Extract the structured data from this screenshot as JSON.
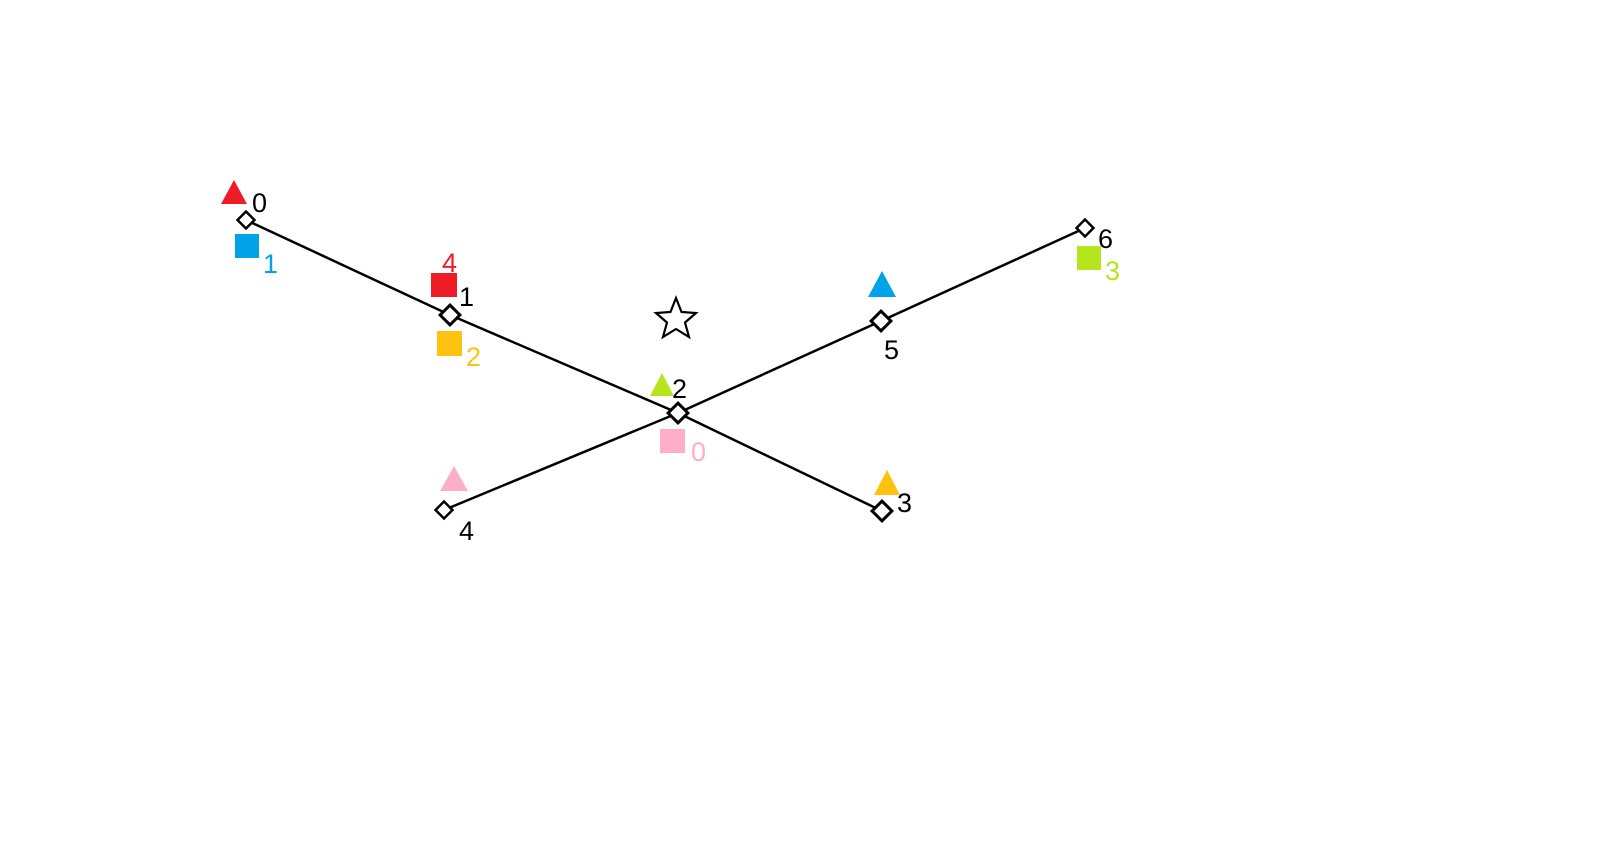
{
  "diagram": {
    "colors": {
      "line": "#000000",
      "red": "#ee1c25",
      "blue": "#00a2e8",
      "yellow": "#ffc20e",
      "green": "#b5e61d",
      "pink": "#ffaec9"
    },
    "nodes": [
      {
        "id": "node-0",
        "label": "0"
      },
      {
        "id": "node-1",
        "label": "1"
      },
      {
        "id": "node-2",
        "label": "2"
      },
      {
        "id": "node-3",
        "label": "3"
      },
      {
        "id": "node-4",
        "label": "4"
      },
      {
        "id": "node-5",
        "label": "5"
      },
      {
        "id": "node-6",
        "label": "6"
      }
    ],
    "edges": [
      {
        "from": "node-0",
        "to": "node-1"
      },
      {
        "from": "node-1",
        "to": "node-2"
      },
      {
        "from": "node-2",
        "to": "node-3"
      },
      {
        "from": "node-4",
        "to": "node-2"
      },
      {
        "from": "node-2",
        "to": "node-5"
      },
      {
        "from": "node-5",
        "to": "node-6"
      }
    ],
    "triangles": [
      {
        "node": "node-0",
        "color": "red"
      },
      {
        "node": "node-2",
        "color": "green"
      },
      {
        "node": "node-3",
        "color": "yellow"
      },
      {
        "node": "node-4",
        "color": "pink"
      },
      {
        "node": "node-5",
        "color": "blue"
      }
    ],
    "squares": [
      {
        "node": "node-0",
        "color": "blue",
        "label": "1"
      },
      {
        "node": "node-1",
        "color": "red",
        "label": "4"
      },
      {
        "node": "node-1",
        "color": "yellow",
        "label": "2"
      },
      {
        "node": "node-2",
        "color": "pink",
        "label": "0"
      },
      {
        "node": "node-6",
        "color": "green",
        "label": "3"
      }
    ],
    "star": {
      "icon": "star-outline-icon"
    }
  }
}
